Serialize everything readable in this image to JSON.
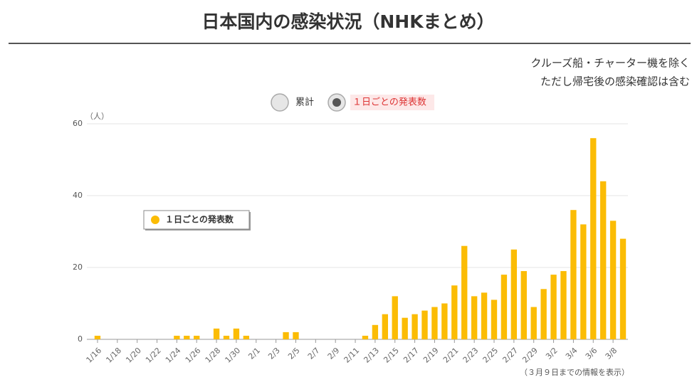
{
  "chart_data": {
    "type": "bar",
    "title": "日本国内の感染状況（NHKまとめ）",
    "notes": [
      "クルーズ船・チャーター機を除く",
      "ただし帰宅後の感染確認は含む"
    ],
    "toggles": [
      {
        "label": "累計",
        "selected": false
      },
      {
        "label": "１日ごとの発表数",
        "selected": true
      }
    ],
    "y_label": "（人）",
    "footnote": "（３月９日までの情報を表示）",
    "categories": [
      "1/16",
      null,
      "1/18",
      null,
      "1/20",
      null,
      "1/22",
      null,
      "1/24",
      null,
      "1/26",
      null,
      "1/28",
      null,
      "1/30",
      null,
      "2/1",
      null,
      "2/3",
      null,
      "2/5",
      null,
      "2/7",
      null,
      "2/9",
      null,
      "2/11",
      null,
      "2/13",
      null,
      "2/15",
      null,
      "2/17",
      null,
      "2/19",
      null,
      "2/21",
      null,
      "2/23",
      null,
      "2/25",
      null,
      "2/27",
      null,
      "2/29",
      null,
      "3/2",
      null,
      "3/4",
      null,
      "3/6",
      null,
      "3/8",
      null
    ],
    "series": [
      {
        "name": "１日ごとの発表数",
        "color": "#fbbc05",
        "values": [
          1,
          0,
          0,
          0,
          0,
          0,
          0,
          0,
          1,
          1,
          1,
          0,
          3,
          1,
          3,
          1,
          0,
          0,
          0,
          2,
          2,
          0,
          0,
          0,
          0,
          0,
          0,
          1,
          4,
          7,
          12,
          6,
          7,
          8,
          9,
          10,
          15,
          26,
          12,
          13,
          11,
          18,
          25,
          19,
          9,
          14,
          18,
          19,
          36,
          32,
          56,
          44,
          33,
          28
        ]
      }
    ],
    "ylim": [
      0,
      60
    ],
    "yticks": [
      0,
      20,
      40,
      60
    ],
    "grid": true
  }
}
